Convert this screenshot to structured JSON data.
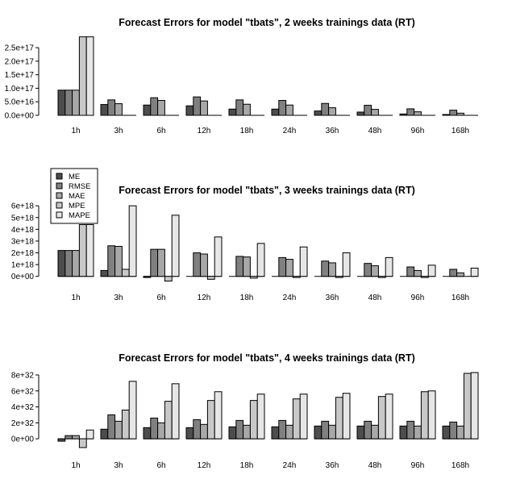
{
  "chart_data": [
    {
      "type": "bar",
      "title": "Forecast Errors for model \"tbats\", 2 weeks trainings data (RT)",
      "categories": [
        "1h",
        "3h",
        "6h",
        "12h",
        "18h",
        "24h",
        "36h",
        "48h",
        "96h",
        "168h"
      ],
      "y_ticks": [
        {
          "value": 0,
          "label": "0.0e+00"
        },
        {
          "value": 5e+16,
          "label": "5.0e+16"
        },
        {
          "value": 1e+17,
          "label": "1.0e+17"
        },
        {
          "value": 1.5e+17,
          "label": "1.5e+17"
        },
        {
          "value": 2e+17,
          "label": "2.0e+17"
        },
        {
          "value": 2.5e+17,
          "label": "2.5e+17"
        }
      ],
      "ylim": [
        0,
        2.95e+17
      ],
      "series": [
        {
          "name": "ME",
          "values": [
            9.3e+16,
            4e+16,
            3.8e+16,
            3.5e+16,
            2.3e+16,
            2.3e+16,
            1.6e+16,
            1.2e+16,
            5000000000000000.0,
            3000000000000000.0
          ]
        },
        {
          "name": "RMSE",
          "values": [
            9.3e+16,
            5.7e+16,
            6.5e+16,
            6.8e+16,
            5.7e+16,
            5.5e+16,
            4.4e+16,
            3.7e+16,
            2.4e+16,
            1.9e+16
          ]
        },
        {
          "name": "MAE",
          "values": [
            9.3e+16,
            4.3e+16,
            5.5e+16,
            5.3e+16,
            4.1e+16,
            3.8e+16,
            2.8e+16,
            2.2e+16,
            1.3e+16,
            8000000000000000.0
          ]
        },
        {
          "name": "MPE",
          "values": [
            2.9e+17,
            0,
            0,
            0,
            0,
            0,
            0,
            0,
            0,
            0
          ]
        },
        {
          "name": "MAPE",
          "values": [
            2.9e+17,
            0,
            0,
            0,
            0,
            0,
            0,
            0,
            0,
            0
          ]
        }
      ]
    },
    {
      "type": "bar",
      "title": "Forecast Errors for model \"tbats\", 3 weeks trainings data (RT)",
      "categories": [
        "1h",
        "3h",
        "6h",
        "12h",
        "18h",
        "24h",
        "36h",
        "48h",
        "96h",
        "168h"
      ],
      "y_ticks": [
        {
          "value": 0,
          "label": "0e+00"
        },
        {
          "value": 1e+18,
          "label": "1e+18"
        },
        {
          "value": 2e+18,
          "label": "2e+18"
        },
        {
          "value": 3e+18,
          "label": "3e+18"
        },
        {
          "value": 4e+18,
          "label": "4e+18"
        },
        {
          "value": 5e+18,
          "label": "5e+18"
        },
        {
          "value": 6e+18,
          "label": "6e+18"
        }
      ],
      "ylim": [
        -5e+17,
        6.15e+18
      ],
      "legend": {
        "placement": "top-left",
        "entries": [
          "ME",
          "RMSE",
          "MAE",
          "MPE",
          "MAPE"
        ]
      },
      "series": [
        {
          "name": "ME",
          "values": [
            2.2e+18,
            5e+17,
            -1e+17,
            0,
            0,
            0,
            0,
            0,
            0,
            0
          ]
        },
        {
          "name": "RMSE",
          "values": [
            2.2e+18,
            2.6e+18,
            2.3e+18,
            2e+18,
            1.7e+18,
            1.6e+18,
            1.3e+18,
            1.1e+18,
            8e+17,
            6e+17
          ]
        },
        {
          "name": "MAE",
          "values": [
            2.2e+18,
            2.55e+18,
            2.3e+18,
            1.9e+18,
            1.65e+18,
            1.45e+18,
            1.15e+18,
            9e+17,
            5e+17,
            3e+17
          ]
        },
        {
          "name": "MPE",
          "values": [
            4.4e+18,
            6e+17,
            -4e+17,
            -2.5e+17,
            -1.5e+17,
            -1e+17,
            -1e+17,
            -1e+17,
            -1e+17,
            0
          ]
        },
        {
          "name": "MAPE",
          "values": [
            4.4e+18,
            6e+18,
            5.2e+18,
            3.35e+18,
            2.8e+18,
            2.5e+18,
            2e+18,
            1.6e+18,
            9.5e+17,
            7e+17
          ]
        }
      ]
    },
    {
      "type": "bar",
      "title": "Forecast Errors for model \"tbats\", 4 weeks trainings data (RT)",
      "categories": [
        "1h",
        "3h",
        "6h",
        "12h",
        "18h",
        "24h",
        "36h",
        "48h",
        "96h",
        "168h"
      ],
      "y_ticks": [
        {
          "value": 0,
          "label": "0e+00"
        },
        {
          "value": 2e+32,
          "label": "2e+32"
        },
        {
          "value": 4e+32,
          "label": "4e+32"
        },
        {
          "value": 6e+32,
          "label": "6e+32"
        },
        {
          "value": 8e+32,
          "label": "8e+32"
        }
      ],
      "ylim": [
        -1.4e+32,
        8.4e+32
      ],
      "series": [
        {
          "name": "ME",
          "values": [
            -3e+31,
            1.2e+32,
            1.4e+32,
            1.4e+32,
            1.5e+32,
            1.5e+32,
            1.6e+32,
            1.6e+32,
            1.6e+32,
            1.6e+32
          ]
        },
        {
          "name": "RMSE",
          "values": [
            4e+31,
            3e+32,
            2.6e+32,
            2.4e+32,
            2.3e+32,
            2.3e+32,
            2.2e+32,
            2.2e+32,
            2.2e+32,
            2.1e+32
          ]
        },
        {
          "name": "MAE",
          "values": [
            4e+31,
            2.2e+32,
            2e+32,
            1.8e+32,
            1.7e+32,
            1.7e+32,
            1.7e+32,
            1.7e+32,
            1.6e+32,
            1.6e+32
          ]
        },
        {
          "name": "MPE",
          "values": [
            -1.1e+32,
            3.6e+32,
            4.7e+32,
            4.8e+32,
            4.8e+32,
            5e+32,
            5.2e+32,
            5.3e+32,
            5.9e+32,
            8.2e+32
          ]
        },
        {
          "name": "MAPE",
          "values": [
            1.1e+32,
            7.2e+32,
            6.9e+32,
            5.9e+32,
            5.6e+32,
            5.6e+32,
            5.7e+32,
            5.6e+32,
            6e+32,
            8.3e+32
          ]
        }
      ]
    }
  ],
  "colors": {
    "ME": "#4d4d4d",
    "RMSE": "#808080",
    "MAE": "#a8a8a8",
    "MPE": "#c8c8c8",
    "MAPE": "#e6e6e6",
    "stroke": "#000000"
  }
}
